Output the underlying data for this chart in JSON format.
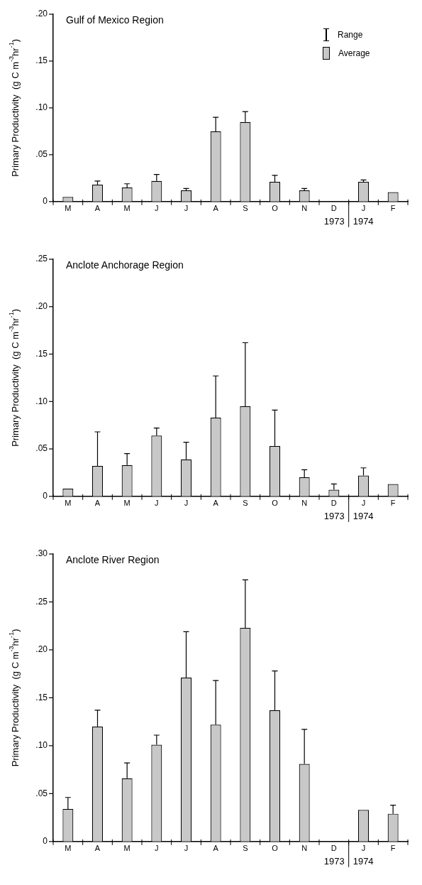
{
  "chart_data": [
    {
      "type": "bar",
      "title": "Gulf of Mexico Region",
      "ylabel": "Primary Productivity  (g C m$^{-3}$hr$^{-1}$)",
      "categories": [
        "M",
        "A",
        "M",
        "J",
        "J",
        "A",
        "S",
        "O",
        "N",
        "D",
        "J",
        "F"
      ],
      "series": [
        {
          "name": "Average",
          "color": "#c8c8c8",
          "values": [
            0.005,
            0.018,
            0.015,
            0.022,
            0.012,
            0.075,
            0.085,
            0.021,
            0.012,
            null,
            0.021,
            0.01
          ],
          "errors": [
            null,
            [
              0.018,
              0.022
            ],
            [
              0.015,
              0.019
            ],
            [
              0.022,
              0.029
            ],
            [
              0.012,
              0.014
            ],
            [
              0.075,
              0.09
            ],
            [
              0.085,
              0.096
            ],
            [
              0.021,
              0.028
            ],
            [
              0.012,
              0.014
            ],
            null,
            [
              0.021,
              0.023
            ],
            null
          ]
        }
      ],
      "ylim": [
        0,
        0.2
      ],
      "yticks": [
        {
          "value": 0,
          "label": "0"
        },
        {
          "value": 0.05,
          "label": ".05"
        },
        {
          "value": 0.1,
          "label": ".10"
        },
        {
          "value": 0.15,
          "label": ".15"
        },
        {
          "value": 0.2,
          "label": ".20"
        }
      ],
      "grid": false,
      "legend": "top right",
      "annotations": [
        "Range",
        "1973",
        "1974"
      ]
    },
    {
      "type": "bar",
      "title": "Anclote Anchorage Region",
      "ylabel": "Primary Productivity  (g C m$^{-3}$hr$^{-1}$)",
      "categories": [
        "M",
        "A",
        "M",
        "J",
        "J",
        "A",
        "S",
        "O",
        "N",
        "D",
        "J",
        "F"
      ],
      "series": [
        {
          "color": "#c8c8c8",
          "values": [
            0.008,
            0.032,
            0.033,
            0.064,
            0.039,
            0.083,
            0.095,
            0.053,
            0.02,
            0.007,
            0.022,
            0.013
          ],
          "errors": [
            null,
            [
              0.032,
              0.068
            ],
            [
              0.033,
              0.045
            ],
            [
              0.064,
              0.072
            ],
            [
              0.039,
              0.057
            ],
            [
              0.083,
              0.127
            ],
            [
              0.095,
              0.162
            ],
            [
              0.053,
              0.091
            ],
            [
              0.02,
              0.028
            ],
            [
              0.007,
              0.013
            ],
            [
              0.022,
              0.03
            ],
            null
          ]
        }
      ],
      "ylim": [
        0,
        0.25
      ],
      "yticks": [
        {
          "value": 0,
          "label": "0"
        },
        {
          "value": 0.05,
          "label": ".05"
        },
        {
          "value": 0.1,
          "label": ".10"
        },
        {
          "value": 0.15,
          "label": ".15"
        },
        {
          "value": 0.2,
          "label": ".20"
        },
        {
          "value": 0.25,
          "label": ".25"
        }
      ],
      "grid": false,
      "legend": false,
      "annotations": [
        "1973",
        "1974"
      ]
    },
    {
      "type": "bar",
      "title": "Anclote River Region",
      "ylabel": "Primary Productivity  (g C m$^{-3}$hr$^{-1}$)",
      "categories": [
        "M",
        "A",
        "M",
        "J",
        "J",
        "A",
        "S",
        "O",
        "N",
        "D",
        "J",
        "F"
      ],
      "series": [
        {
          "color": "#c8c8c8",
          "values": [
            0.034,
            0.12,
            0.066,
            0.101,
            0.171,
            0.122,
            0.223,
            0.137,
            0.081,
            null,
            0.033,
            0.029
          ],
          "errors": [
            [
              0.034,
              0.046
            ],
            [
              0.12,
              0.137
            ],
            [
              0.066,
              0.082
            ],
            [
              0.101,
              0.111
            ],
            [
              0.171,
              0.219
            ],
            [
              0.122,
              0.168
            ],
            [
              0.223,
              0.273
            ],
            [
              0.137,
              0.178
            ],
            [
              0.081,
              0.117
            ],
            null,
            null,
            [
              0.029,
              0.038
            ]
          ]
        }
      ],
      "ylim": [
        0,
        0.3
      ],
      "yticks": [
        {
          "value": 0,
          "label": "0"
        },
        {
          "value": 0.05,
          "label": ".05"
        },
        {
          "value": 0.1,
          "label": ".10"
        },
        {
          "value": 0.15,
          "label": ".15"
        },
        {
          "value": 0.2,
          "label": ".20"
        },
        {
          "value": 0.25,
          "label": ".25"
        },
        {
          "value": 0.3,
          "label": ".30"
        }
      ],
      "grid": false,
      "legend": false,
      "annotations": [
        "1973",
        "1974"
      ]
    }
  ]
}
